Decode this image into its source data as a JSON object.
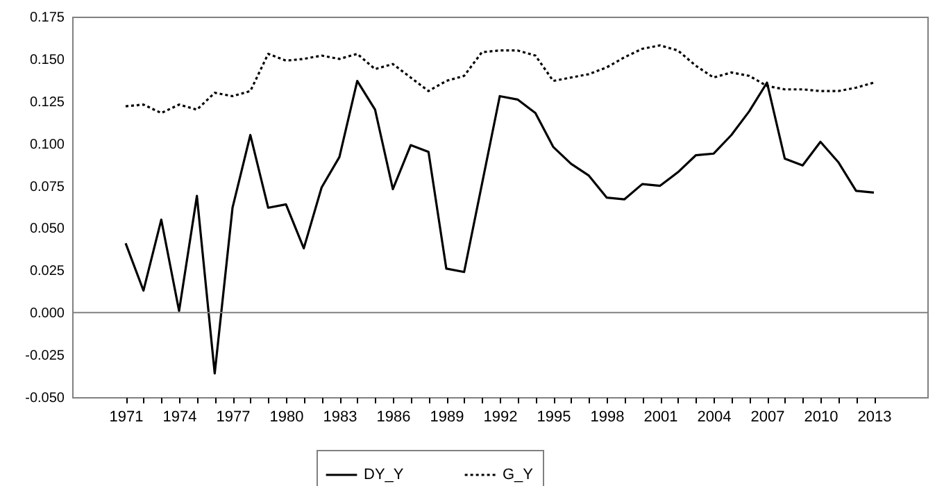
{
  "chart_data": {
    "type": "line",
    "x": [
      1971,
      1972,
      1973,
      1974,
      1975,
      1976,
      1977,
      1978,
      1979,
      1980,
      1981,
      1982,
      1983,
      1984,
      1985,
      1986,
      1987,
      1988,
      1989,
      1990,
      1991,
      1992,
      1993,
      1994,
      1995,
      1996,
      1997,
      1998,
      1999,
      2000,
      2001,
      2002,
      2003,
      2004,
      2005,
      2006,
      2007,
      2008,
      2009,
      2010,
      2011,
      2012,
      2013
    ],
    "series": [
      {
        "name": "DY_Y",
        "color": "#000000",
        "line_style": "solid",
        "values": [
          0.041,
          0.013,
          0.055,
          0.001,
          0.069,
          -0.036,
          0.062,
          0.105,
          0.062,
          0.064,
          0.038,
          0.074,
          0.092,
          0.137,
          0.12,
          0.073,
          0.099,
          0.095,
          0.026,
          0.024,
          0.076,
          0.128,
          0.126,
          0.118,
          0.098,
          0.088,
          0.081,
          0.068,
          0.067,
          0.076,
          0.075,
          0.083,
          0.093,
          0.094,
          0.105,
          0.119,
          0.136,
          0.091,
          0.087,
          0.101,
          0.089,
          0.072,
          0.071
        ]
      },
      {
        "name": "G_Y",
        "color": "#000000",
        "line_style": "dotted",
        "values": [
          0.122,
          0.123,
          0.118,
          0.123,
          0.12,
          0.13,
          0.128,
          0.131,
          0.153,
          0.149,
          0.15,
          0.152,
          0.15,
          0.153,
          0.144,
          0.147,
          0.139,
          0.131,
          0.137,
          0.14,
          0.154,
          0.155,
          0.155,
          0.152,
          0.137,
          0.139,
          0.141,
          0.145,
          0.151,
          0.156,
          0.158,
          0.155,
          0.146,
          0.139,
          0.142,
          0.14,
          0.134,
          0.132,
          0.132,
          0.131,
          0.131,
          0.133,
          0.136
        ]
      }
    ],
    "xlim": [
      1968,
      2016
    ],
    "xticks": [
      1971,
      {
        "value": 1972,
        "label": null
      },
      {
        "value": 1973,
        "label": null
      },
      1974,
      {
        "value": 1975,
        "label": null
      },
      {
        "value": 1976,
        "label": null
      },
      1977,
      {
        "value": 1978,
        "label": null
      },
      {
        "value": 1979,
        "label": null
      },
      1980,
      {
        "value": 1981,
        "label": null
      },
      {
        "value": 1982,
        "label": null
      },
      1983,
      {
        "value": 1984,
        "label": null
      },
      {
        "value": 1985,
        "label": null
      },
      1986,
      {
        "value": 1987,
        "label": null
      },
      {
        "value": 1988,
        "label": null
      },
      1989,
      {
        "value": 1990,
        "label": null
      },
      {
        "value": 1991,
        "label": null
      },
      1992,
      {
        "value": 1993,
        "label": null
      },
      {
        "value": 1994,
        "label": null
      },
      1995,
      {
        "value": 1996,
        "label": null
      },
      {
        "value": 1997,
        "label": null
      },
      1998,
      {
        "value": 1999,
        "label": null
      },
      {
        "value": 2000,
        "label": null
      },
      2001,
      {
        "value": 2002,
        "label": null
      },
      {
        "value": 2003,
        "label": null
      },
      2004,
      {
        "value": 2005,
        "label": null
      },
      {
        "value": 2006,
        "label": null
      },
      2007,
      {
        "value": 2008,
        "label": null
      },
      {
        "value": 2009,
        "label": null
      },
      2010,
      {
        "value": 2011,
        "label": null
      },
      {
        "value": 2012,
        "label": null
      },
      2013
    ],
    "ylim": [
      -0.05,
      0.175
    ],
    "yticks": [
      {
        "value": -0.05,
        "label": "-0.050"
      },
      {
        "value": -0.025,
        "label": "-0.025"
      },
      {
        "value": 0,
        "label": "0.000"
      },
      {
        "value": 0.025,
        "label": "0.025"
      },
      {
        "value": 0.05,
        "label": "0.050"
      },
      {
        "value": 0.075,
        "label": "0.075"
      },
      {
        "value": 0.1,
        "label": "0.100"
      },
      {
        "value": 0.125,
        "label": "0.125"
      },
      {
        "value": 0.15,
        "label": "0.150"
      },
      {
        "value": 0.175,
        "label": "0.175"
      }
    ],
    "ref_lines": [
      {
        "axis": "y",
        "value": 0,
        "color": "#808080"
      }
    ],
    "grid": false,
    "legend": "bottom"
  }
}
